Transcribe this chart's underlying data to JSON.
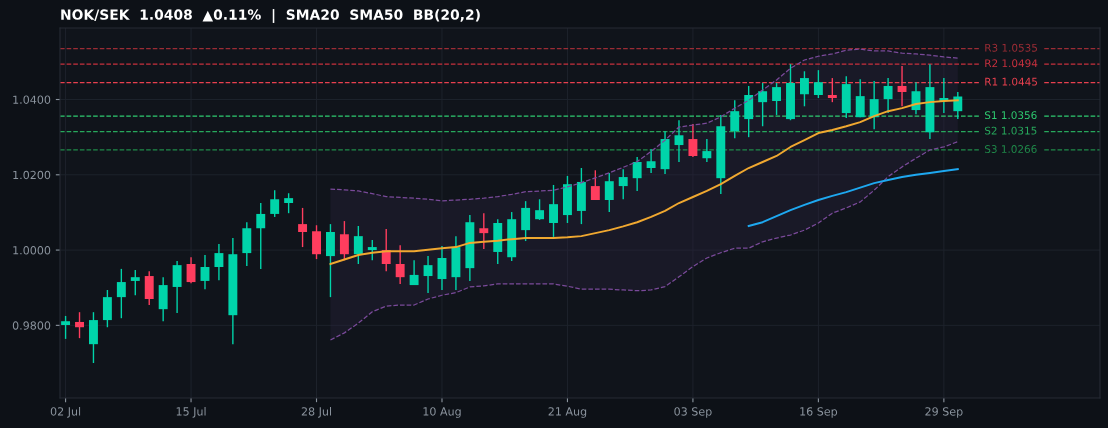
{
  "chart_data": {
    "type": "candlestick",
    "title": "NOK/SEK  1.0408  ▲0.11%  |  SMA20  SMA50  BB(20,2)",
    "categories": [
      "02 Jul",
      null,
      null,
      null,
      null,
      null,
      null,
      null,
      null,
      "15 Jul",
      null,
      null,
      null,
      null,
      null,
      null,
      null,
      null,
      "28 Jul",
      null,
      null,
      null,
      null,
      null,
      null,
      null,
      null,
      "10 Aug",
      null,
      null,
      null,
      null,
      null,
      null,
      null,
      null,
      "21 Aug",
      null,
      null,
      null,
      null,
      null,
      null,
      null,
      null,
      "03 Sep",
      null,
      null,
      null,
      null,
      null,
      null,
      null,
      null,
      "16 Sep",
      null,
      null,
      null,
      null,
      null,
      null,
      null,
      null,
      "29 Sep",
      null
    ],
    "ohlc": [
      [
        0.9801,
        0.9825,
        0.9764,
        0.9811
      ],
      [
        0.9809,
        0.9835,
        0.9766,
        0.9795
      ],
      [
        0.975,
        0.9835,
        0.97,
        0.9814
      ],
      [
        0.9814,
        0.9894,
        0.9795,
        0.9875
      ],
      [
        0.9875,
        0.995,
        0.9819,
        0.9915
      ],
      [
        0.9918,
        0.9947,
        0.988,
        0.9928
      ],
      [
        0.9931,
        0.9944,
        0.9854,
        0.987
      ],
      [
        0.9843,
        0.9928,
        0.9811,
        0.9907
      ],
      [
        0.9902,
        0.9971,
        0.9833,
        0.996
      ],
      [
        0.9963,
        0.9981,
        0.9912,
        0.9915
      ],
      [
        0.9918,
        0.9987,
        0.9896,
        0.9955
      ],
      [
        0.9955,
        1.0016,
        0.992,
        0.9992
      ],
      [
        0.9827,
        1.0032,
        0.975,
        0.9989
      ],
      [
        0.9992,
        1.0074,
        0.9958,
        1.0058
      ],
      [
        1.0058,
        1.0125,
        0.995,
        1.0096
      ],
      [
        1.0096,
        1.0159,
        1.0088,
        1.0135
      ],
      [
        1.0125,
        1.0151,
        1.0098,
        1.0138
      ],
      [
        1.0069,
        1.0112,
        1.0008,
        1.0048
      ],
      [
        1.005,
        1.0066,
        0.9976,
        0.9989
      ],
      [
        0.9984,
        1.0069,
        0.9875,
        1.0048
      ],
      [
        1.0042,
        1.0077,
        0.9973,
        0.9989
      ],
      [
        0.9989,
        1.0064,
        0.9963,
        1.0037
      ],
      [
        1.0,
        1.0027,
        0.9973,
        1.0008
      ],
      [
        1.0,
        1.0056,
        0.9944,
        0.9963
      ],
      [
        0.9963,
        1.0013,
        0.991,
        0.9928
      ],
      [
        0.9907,
        0.9973,
        0.9907,
        0.9934
      ],
      [
        0.9931,
        0.9984,
        0.9886,
        0.996
      ],
      [
        0.9923,
        1.0011,
        0.9894,
        0.9979
      ],
      [
        0.9928,
        1.0037,
        0.9894,
        1.0008
      ],
      [
        0.9952,
        1.0093,
        0.9918,
        1.0074
      ],
      [
        1.0058,
        1.0098,
        1.0003,
        1.0045
      ],
      [
        0.9995,
        1.0082,
        0.9963,
        1.0072
      ],
      [
        0.9981,
        1.0101,
        0.9971,
        1.0082
      ],
      [
        1.0053,
        1.013,
        1.0024,
        1.0112
      ],
      [
        1.0082,
        1.0135,
        1.008,
        1.0106
      ],
      [
        1.0072,
        1.0173,
        1.0035,
        1.0122
      ],
      [
        1.0093,
        1.0197,
        1.0072,
        1.0175
      ],
      [
        1.0104,
        1.0218,
        1.0069,
        1.0181
      ],
      [
        1.017,
        1.0212,
        1.0133,
        1.0133
      ],
      [
        1.0133,
        1.0205,
        1.0101,
        1.0183
      ],
      [
        1.017,
        1.0215,
        1.0135,
        1.0194
      ],
      [
        1.0191,
        1.0247,
        1.0157,
        1.0234
      ],
      [
        1.0218,
        1.0268,
        1.0205,
        1.0236
      ],
      [
        1.0215,
        1.0316,
        1.0202,
        1.0295
      ],
      [
        1.0279,
        1.0345,
        1.0234,
        1.0305
      ],
      [
        1.0295,
        1.0335,
        1.0247,
        1.025
      ],
      [
        1.0244,
        1.0295,
        1.0234,
        1.0263
      ],
      [
        1.0191,
        1.0359,
        1.0149,
        1.0329
      ],
      [
        1.0316,
        1.0398,
        1.0297,
        1.0369
      ],
      [
        1.0348,
        1.0436,
        1.03,
        1.0412
      ],
      [
        1.0393,
        1.0444,
        1.0329,
        1.0422
      ],
      [
        1.0396,
        1.0444,
        1.0359,
        1.0433
      ],
      [
        1.0348,
        1.0494,
        1.0345,
        1.0444
      ],
      [
        1.0414,
        1.0475,
        1.0382,
        1.0457
      ],
      [
        1.0412,
        1.0478,
        1.0404,
        1.0446
      ],
      [
        1.0412,
        1.0457,
        1.0393,
        1.0404
      ],
      [
        1.0364,
        1.0462,
        1.0351,
        1.0441
      ],
      [
        1.0353,
        1.0454,
        1.0353,
        1.0409
      ],
      [
        1.0353,
        1.0449,
        1.0321,
        1.0401
      ],
      [
        1.0401,
        1.0457,
        1.0364,
        1.0436
      ],
      [
        1.0436,
        1.0489,
        1.0382,
        1.042
      ],
      [
        1.0372,
        1.0446,
        1.0361,
        1.0422
      ],
      [
        1.0313,
        1.0494,
        1.0295,
        1.0433
      ],
      [
        1.0396,
        1.0457,
        1.0364,
        1.0404
      ],
      [
        1.0369,
        1.042,
        1.0348,
        1.0408
      ]
    ],
    "colors": [
      "#00d4aa",
      "#ff3d5e",
      "#00d4aa",
      "#00d4aa",
      "#00d4aa",
      "#00d4aa",
      "#ff3d5e",
      "#00d4aa",
      "#00d4aa",
      "#ff3d5e",
      "#00d4aa",
      "#00d4aa",
      "#00d4aa",
      "#00d4aa",
      "#00d4aa",
      "#00d4aa",
      "#00d4aa",
      "#ff3d5e",
      "#ff3d5e",
      "#00d4aa",
      "#ff3d5e",
      "#00d4aa",
      "#00d4aa",
      "#ff3d5e",
      "#ff3d5e",
      "#00d4aa",
      "#00d4aa",
      "#00d4aa",
      "#00d4aa",
      "#00d4aa",
      "#ff3d5e",
      "#00d4aa",
      "#00d4aa",
      "#00d4aa",
      "#00d4aa",
      "#00d4aa",
      "#00d4aa",
      "#00d4aa",
      "#ff3d5e",
      "#00d4aa",
      "#00d4aa",
      "#00d4aa",
      "#00d4aa",
      "#00d4aa",
      "#00d4aa",
      "#ff3d5e",
      "#00d4aa",
      "#00d4aa",
      "#00d4aa",
      "#00d4aa",
      "#00d4aa",
      "#00d4aa",
      "#00d4aa",
      "#00d4aa",
      "#00d4aa",
      "#ff3d5e",
      "#00d4aa",
      "#00d4aa",
      "#00d4aa",
      "#00d4aa",
      "#ff3d5e",
      "#00d4aa",
      "#00d4aa",
      "#00d4aa",
      "#00d4aa"
    ],
    "series": [
      {
        "type": "line",
        "color": "#f0a830",
        "values": [
          null,
          null,
          null,
          null,
          null,
          null,
          null,
          null,
          null,
          null,
          null,
          null,
          null,
          null,
          null,
          null,
          null,
          null,
          null,
          0.9963,
          0.9975,
          0.9987,
          0.9993,
          0.9997,
          0.9997,
          0.9997,
          1.0001,
          1.0005,
          1.0008,
          1.0019,
          1.0022,
          1.0025,
          1.0029,
          1.0032,
          1.0032,
          1.0032,
          1.0034,
          1.0037,
          1.0045,
          1.0053,
          1.0063,
          1.0074,
          1.0088,
          1.0104,
          1.0125,
          1.0141,
          1.0157,
          1.0175,
          1.0197,
          1.0218,
          1.0234,
          1.025,
          1.0274,
          1.0292,
          1.0311,
          1.0319,
          1.0329,
          1.034,
          1.0356,
          1.0369,
          1.0377,
          1.0388,
          1.0393,
          1.0396,
          1.0398
        ],
        "upper": [
          null,
          null,
          null,
          null,
          null,
          null,
          null,
          null,
          null,
          null,
          null,
          null,
          null,
          null,
          null,
          null,
          null,
          null,
          null,
          1.0162,
          1.016,
          1.0157,
          1.015,
          1.0142,
          1.014,
          1.0138,
          1.0135,
          1.0131,
          1.0133,
          1.0135,
          1.0138,
          1.0142,
          1.0148,
          1.0155,
          1.0157,
          1.0159,
          1.0168,
          1.0179,
          1.0192,
          1.0205,
          1.022,
          1.0235,
          1.0262,
          1.0292,
          1.0327,
          1.0332,
          1.0337,
          1.0354,
          1.0377,
          1.0398,
          1.0425,
          1.0452,
          1.0483,
          1.0505,
          1.0515,
          1.0521,
          1.0531,
          1.0534,
          1.0529,
          1.0529,
          1.0523,
          1.0521,
          1.0518,
          1.0513,
          1.051
        ],
        "lower": [
          null,
          null,
          null,
          null,
          null,
          null,
          null,
          null,
          null,
          null,
          null,
          null,
          null,
          null,
          null,
          null,
          null,
          null,
          null,
          0.9761,
          0.978,
          0.9806,
          0.9836,
          0.9851,
          0.9854,
          0.9854,
          0.987,
          0.988,
          0.9887,
          0.9902,
          0.9905,
          0.991,
          0.991,
          0.991,
          0.991,
          0.991,
          0.9904,
          0.9896,
          0.9896,
          0.9896,
          0.9894,
          0.9892,
          0.9894,
          0.9903,
          0.9929,
          0.9956,
          0.9979,
          0.9993,
          1.0005,
          1.0005,
          1.0022,
          1.0032,
          1.004,
          1.0053,
          1.0072,
          1.0098,
          1.0112,
          1.0128,
          1.0159,
          1.0195,
          1.0221,
          1.0244,
          1.0266,
          1.0274,
          1.0288
        ]
      },
      {
        "type": "line",
        "color": "#7a4a9a",
        "line_style": "dashed",
        "values": [
          null,
          null,
          null,
          null,
          null,
          null,
          null,
          null,
          null,
          null,
          null,
          null,
          null,
          null,
          null,
          null,
          null,
          null,
          null,
          1.0162,
          1.016,
          1.0157,
          1.015,
          1.0142,
          1.014,
          1.0138,
          1.0135,
          1.0131,
          1.0133,
          1.0135,
          1.0138,
          1.0142,
          1.0148,
          1.0155,
          1.0157,
          1.0159,
          1.0168,
          1.0179,
          1.0192,
          1.0205,
          1.022,
          1.0235,
          1.0262,
          1.0292,
          1.0327,
          1.0332,
          1.0337,
          1.0354,
          1.0377,
          1.0398,
          1.0425,
          1.0452,
          1.0483,
          1.0505,
          1.0515,
          1.0521,
          1.0531,
          1.0534,
          1.0529,
          1.0529,
          1.0523,
          1.0521,
          1.0518,
          1.0513,
          1.051
        ]
      },
      {
        "type": "line",
        "color": "#7a4a9a",
        "line_style": "dashed",
        "values": [
          null,
          null,
          null,
          null,
          null,
          null,
          null,
          null,
          null,
          null,
          null,
          null,
          null,
          null,
          null,
          null,
          null,
          null,
          null,
          0.9761,
          0.978,
          0.9806,
          0.9836,
          0.9851,
          0.9854,
          0.9854,
          0.987,
          0.988,
          0.9887,
          0.9902,
          0.9905,
          0.991,
          0.991,
          0.991,
          0.991,
          0.991,
          0.9904,
          0.9896,
          0.9896,
          0.9896,
          0.9894,
          0.9892,
          0.9894,
          0.9903,
          0.9929,
          0.9956,
          0.9979,
          0.9993,
          1.0005,
          1.0005,
          1.0022,
          1.0032,
          1.004,
          1.0053,
          1.0072,
          1.0098,
          1.0112,
          1.0128,
          1.0159,
          1.0195,
          1.0221,
          1.0244,
          1.0266,
          1.0274,
          1.0288
        ]
      },
      {
        "type": "line",
        "color": "#1ea8f0",
        "values": [
          null,
          null,
          null,
          null,
          null,
          null,
          null,
          null,
          null,
          null,
          null,
          null,
          null,
          null,
          null,
          null,
          null,
          null,
          null,
          null,
          null,
          null,
          null,
          null,
          null,
          null,
          null,
          null,
          null,
          null,
          null,
          null,
          null,
          null,
          null,
          null,
          null,
          null,
          null,
          null,
          null,
          null,
          null,
          null,
          null,
          null,
          null,
          null,
          null,
          1.0064,
          1.0074,
          1.009,
          1.0106,
          1.012,
          1.0133,
          1.0144,
          1.0154,
          1.0166,
          1.0178,
          1.0186,
          1.0194,
          1.02,
          1.0205,
          1.021,
          1.0215
        ]
      }
    ],
    "ylim": [
      0.9607,
      1.059
    ],
    "yticks": [
      {
        "value": 0.98,
        "label": "0.9800"
      },
      {
        "value": 1.0,
        "label": "1.0000"
      },
      {
        "value": 1.02,
        "label": "1.0200"
      },
      {
        "value": 1.04,
        "label": "1.0400"
      }
    ],
    "grid": true,
    "ref_lines": [
      {
        "axis": "y",
        "value": 1.0535,
        "label": "R3 1.0535",
        "color": "#9b2c35",
        "line_style": "dashed"
      },
      {
        "axis": "y",
        "value": 1.0494,
        "label": "R2 1.0494",
        "color": "#c8303e",
        "line_style": "dashed"
      },
      {
        "axis": "y",
        "value": 1.0445,
        "label": "R1 1.0445",
        "color": "#e8404f",
        "line_style": "dashed"
      },
      {
        "axis": "y",
        "value": 1.0356,
        "label": "S1 1.0356",
        "color": "#2ecc71",
        "line_style": "dashed"
      },
      {
        "axis": "y",
        "value": 1.0315,
        "label": "S2 1.0315",
        "color": "#27a85c",
        "line_style": "dashed"
      },
      {
        "axis": "y",
        "value": 1.0266,
        "label": "S3 1.0266",
        "color": "#1f8a4a",
        "line_style": "dashed"
      }
    ]
  }
}
